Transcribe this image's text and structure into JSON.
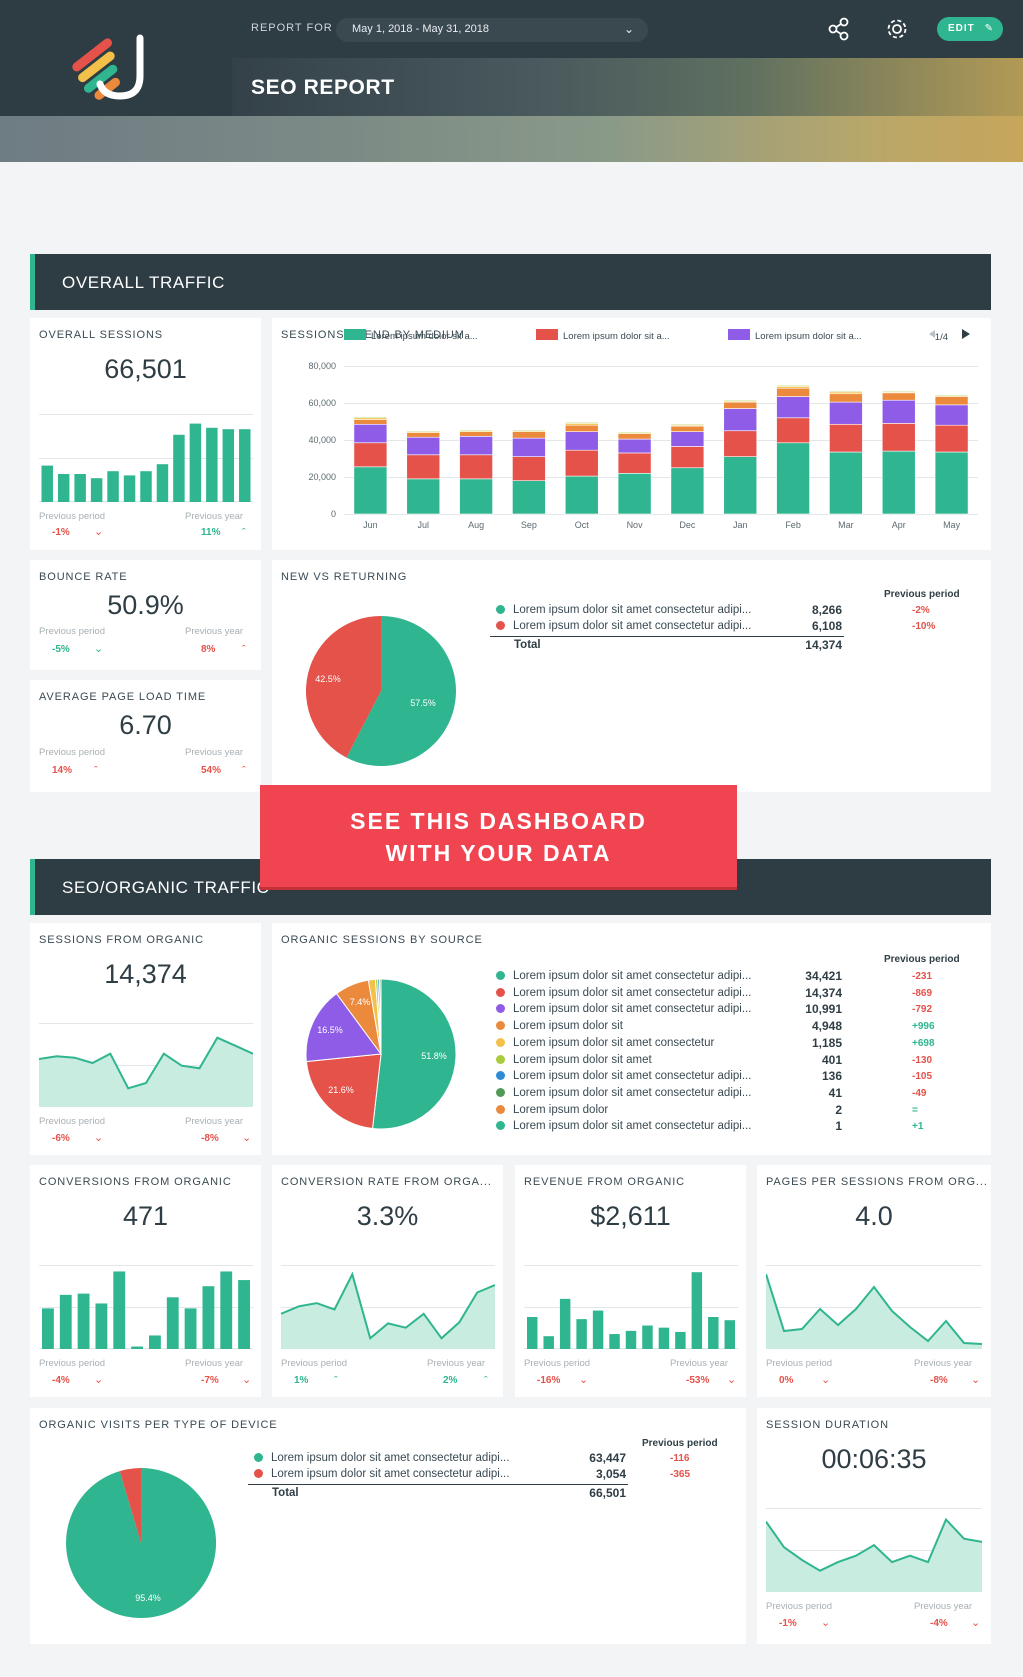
{
  "header": {
    "report_for_label": "REPORT FOR",
    "date_range": "May 1, 2018 - May 31, 2018",
    "title": "SEO REPORT",
    "edit_label": "EDIT"
  },
  "sections": {
    "overall": "OVERALL TRAFFIC",
    "organic": "SEO/ORGANIC TRAFFIC"
  },
  "cta": {
    "line1": "SEE THIS DASHBOARD",
    "line2": "WITH YOUR DATA"
  },
  "colors": {
    "teal": "#2fb58f",
    "red": "#e4524a",
    "purple": "#8e5ce6",
    "orange": "#eb8a3c",
    "yellow": "#f3c04a",
    "lime": "#a9cc3c",
    "blue": "#2d8bd6",
    "green": "#4f9a55"
  },
  "overall_sessions": {
    "title": "OVERALL SESSIONS",
    "value": "66,501",
    "prev_period_label": "Previous period",
    "prev_period_value": "-1%",
    "prev_year_label": "Previous year",
    "prev_year_value": "11%",
    "bars": [
      26,
      20,
      20,
      17,
      22,
      19,
      22,
      27,
      48,
      56,
      53,
      52,
      52
    ]
  },
  "bounce_rate": {
    "title": "BOUNCE RATE",
    "value": "50.9%",
    "prev_period_label": "Previous period",
    "prev_period_value": "-5%",
    "prev_year_label": "Previous year",
    "prev_year_value": "8%"
  },
  "page_load": {
    "title": "AVERAGE PAGE LOAD TIME",
    "value": "6.70",
    "prev_period_label": "Previous period",
    "prev_period_value": "14%",
    "prev_year_label": "Previous year",
    "prev_year_value": "54%"
  },
  "new_vs_returning": {
    "title": "NEW VS RETURNING",
    "prev_period_header": "Previous period",
    "rows": [
      {
        "label": "Lorem ipsum dolor sit amet consectetur adipi...",
        "value": "8,266",
        "delta": "-2%"
      },
      {
        "label": "Lorem ipsum dolor sit amet consectetur adipi...",
        "value": "6,108",
        "delta": "-10%"
      }
    ],
    "total_label": "Total",
    "total_value": "14,374",
    "pie_labels": [
      "57.5%",
      "42.5%"
    ]
  },
  "organic_sessions": {
    "title": "SESSIONS FROM ORGANIC",
    "value": "14,374",
    "prev_period_label": "Previous period",
    "prev_period_value": "-6%",
    "prev_year_label": "Previous year",
    "prev_year_value": "-8%",
    "line": [
      36,
      38,
      37,
      33,
      40,
      14,
      18,
      40,
      31,
      29,
      52,
      46,
      40
    ]
  },
  "organic_by_source": {
    "title": "ORGANIC SESSIONS BY SOURCE",
    "prev_period_header": "Previous period",
    "rows": [
      {
        "label": "Lorem ipsum dolor sit amet consectetur adipi...",
        "value": "34,421",
        "delta": "-231"
      },
      {
        "label": "Lorem ipsum dolor sit amet consectetur adipi...",
        "value": "14,374",
        "delta": "-869"
      },
      {
        "label": "Lorem ipsum dolor sit amet consectetur adipi...",
        "value": "10,991",
        "delta": "-792"
      },
      {
        "label": "Lorem ipsum dolor sit",
        "value": "4,948",
        "delta": "+996"
      },
      {
        "label": "Lorem ipsum dolor sit amet consectetur",
        "value": "1,185",
        "delta": "+698"
      },
      {
        "label": "Lorem ipsum dolor sit amet",
        "value": "401",
        "delta": "-130"
      },
      {
        "label": "Lorem ipsum dolor sit amet consectetur adipi...",
        "value": "136",
        "delta": "-105"
      },
      {
        "label": "Lorem ipsum dolor sit amet consectetur adipi...",
        "value": "41",
        "delta": "-49"
      },
      {
        "label": "Lorem ipsum dolor",
        "value": "2",
        "delta": "="
      },
      {
        "label": "Lorem ipsum dolor sit amet consectetur adipi...",
        "value": "1",
        "delta": "+1"
      }
    ],
    "pie_labels": [
      "51.8%",
      "21.6%",
      "16.5%",
      "7.4%"
    ]
  },
  "conversions": {
    "title": "CONVERSIONS FROM ORGANIC",
    "value": "471",
    "prev_period_label": "Previous period",
    "prev_period_value": "-4%",
    "prev_year_label": "Previous year",
    "prev_year_value": "-7%",
    "bars": [
      33,
      44,
      45,
      37,
      63,
      2,
      11,
      42,
      33,
      51,
      63,
      56
    ]
  },
  "conversion_rate": {
    "title": "CONVERSION RATE FROM ORGA...",
    "value": "3.3%",
    "prev_period_label": "Previous period",
    "prev_period_value": "1%",
    "prev_year_label": "Previous year",
    "prev_year_value": "2%",
    "line": [
      33,
      40,
      43,
      37,
      70,
      10,
      24,
      20,
      33,
      10,
      25,
      53,
      60
    ]
  },
  "revenue": {
    "title": "REVENUE FROM ORGANIC",
    "value": "$2,611",
    "prev_period_label": "Previous period",
    "prev_period_value": "-16%",
    "prev_year_label": "Previous year",
    "prev_year_value": "-53%",
    "bars": [
      30,
      12,
      47,
      28,
      36,
      14,
      17,
      22,
      20,
      16,
      72,
      30,
      27
    ]
  },
  "pages_per_session": {
    "title": "PAGES PER SESSIONS FROM ORG...",
    "value": "4.0",
    "prev_period_label": "Previous period",
    "prev_period_value": "0%",
    "prev_year_label": "Previous year",
    "prev_year_value": "-8%",
    "line": [
      75,
      18,
      20,
      40,
      24,
      40,
      62,
      38,
      22,
      8,
      28,
      6,
      5
    ]
  },
  "device": {
    "title": "ORGANIC VISITS PER TYPE OF DEVICE",
    "prev_period_header": "Previous period",
    "rows": [
      {
        "label": "Lorem ipsum dolor sit amet consectetur adipi...",
        "value": "63,447",
        "delta": "-116"
      },
      {
        "label": "Lorem ipsum dolor sit amet consectetur adipi...",
        "value": "3,054",
        "delta": "-365"
      }
    ],
    "total_label": "Total",
    "total_value": "66,501",
    "pie_labels": [
      "95.4%"
    ]
  },
  "session_duration": {
    "title": "SESSION DURATION",
    "value": "00:06:35",
    "prev_period_label": "Previous period",
    "prev_period_value": "-1%",
    "prev_year_label": "Previous year",
    "prev_year_value": "-4%",
    "line": [
      66,
      42,
      30,
      20,
      28,
      34,
      44,
      28,
      34,
      28,
      68,
      50,
      47
    ]
  },
  "chart_data": {
    "type": "bar",
    "title": "SESSIONS TREND BY MEDIUM",
    "categories": [
      "Jun",
      "Jul",
      "Aug",
      "Sep",
      "Oct",
      "Nov",
      "Dec",
      "Jan",
      "Feb",
      "Mar",
      "Apr",
      "May"
    ],
    "legend": [
      "Lorem ipsum dolor sit a...",
      "Lorem ipsum dolor sit a...",
      "Lorem ipsum dolor sit a..."
    ],
    "legend_page": "1/4",
    "yticks": [
      "80,000",
      "60,000",
      "40,000",
      "20,000",
      "0"
    ],
    "ylim": [
      0,
      80000
    ],
    "series": [
      {
        "name": "teal",
        "values": [
          25500,
          19000,
          19000,
          18000,
          20500,
          22000,
          25000,
          31000,
          38500,
          33500,
          34000,
          33500
        ]
      },
      {
        "name": "red",
        "values": [
          13000,
          13000,
          13000,
          13000,
          14000,
          11000,
          11500,
          14000,
          13500,
          15000,
          15000,
          14500
        ]
      },
      {
        "name": "purple",
        "values": [
          10000,
          9500,
          10000,
          10000,
          10000,
          7500,
          8000,
          12000,
          11500,
          12000,
          12500,
          11000
        ]
      },
      {
        "name": "orange",
        "values": [
          2500,
          2500,
          2500,
          3500,
          3500,
          3000,
          3000,
          3500,
          4500,
          4500,
          4000,
          4500
        ]
      },
      {
        "name": "yellow",
        "values": [
          1000,
          500,
          500,
          500,
          1000,
          500,
          500,
          500,
          1000,
          1000,
          500,
          500
        ]
      },
      {
        "name": "lime",
        "values": [
          500,
          500,
          500,
          500,
          500,
          500,
          500,
          500,
          500,
          500,
          500,
          500
        ]
      }
    ]
  }
}
